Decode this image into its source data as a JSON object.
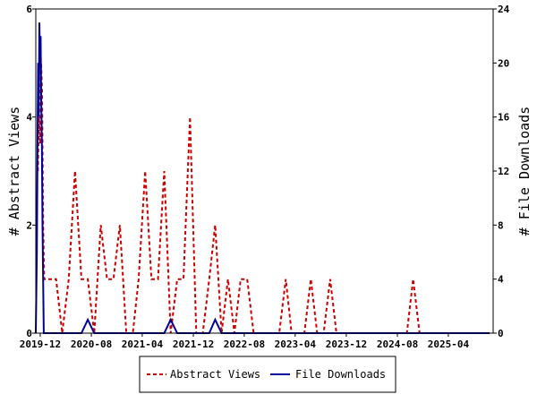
{
  "chart_data": {
    "type": "line",
    "title": "",
    "xlabel": "",
    "ylabel_left": "# Abstract Views",
    "ylabel_right": "# File Downloads",
    "x_tick_labels": [
      "2019-12",
      "2020-08",
      "2021-04",
      "2021-12",
      "2022-08",
      "2023-04",
      "2023-12",
      "2024-08",
      "2025-04"
    ],
    "xlim": [
      "2019-11-10",
      "2025-11-01"
    ],
    "y_left_lim": [
      0,
      6
    ],
    "y_left_ticks": [
      0,
      2,
      4,
      6
    ],
    "y_right_lim": [
      0,
      24
    ],
    "y_right_ticks": [
      0,
      4,
      8,
      12,
      16,
      20,
      24
    ],
    "grid": false,
    "legend_position": "bottom",
    "series": [
      {
        "name": "Abstract Views",
        "axis": "left",
        "color": "#cc0000",
        "style": "dashed",
        "points": [
          [
            "2019-11-20",
            3
          ],
          [
            "2019-11-25",
            4
          ],
          [
            "2019-12-01",
            3.5
          ],
          [
            "2019-12-05",
            5
          ],
          [
            "2019-12-10",
            4.5
          ],
          [
            "2019-12-15",
            2
          ],
          [
            "2019-12-20",
            1
          ],
          [
            "2020-01-15",
            1
          ],
          [
            "2020-02-15",
            1
          ],
          [
            "2020-03-15",
            0
          ],
          [
            "2020-04-15",
            1
          ],
          [
            "2020-05-15",
            3
          ],
          [
            "2020-06-15",
            1
          ],
          [
            "2020-07-15",
            1
          ],
          [
            "2020-08-15",
            0
          ],
          [
            "2020-09-15",
            2
          ],
          [
            "2020-10-15",
            1
          ],
          [
            "2020-11-15",
            1
          ],
          [
            "2020-12-15",
            2
          ],
          [
            "2021-01-15",
            0
          ],
          [
            "2021-02-15",
            0
          ],
          [
            "2021-03-15",
            1
          ],
          [
            "2021-04-15",
            3
          ],
          [
            "2021-05-15",
            1
          ],
          [
            "2021-06-15",
            1
          ],
          [
            "2021-07-15",
            3
          ],
          [
            "2021-08-15",
            0
          ],
          [
            "2021-09-15",
            1
          ],
          [
            "2021-10-15",
            1
          ],
          [
            "2021-11-15",
            4
          ],
          [
            "2021-12-15",
            0
          ],
          [
            "2022-01-15",
            0
          ],
          [
            "2022-02-15",
            1
          ],
          [
            "2022-03-15",
            2
          ],
          [
            "2022-04-15",
            0
          ],
          [
            "2022-05-15",
            1
          ],
          [
            "2022-06-15",
            0
          ],
          [
            "2022-07-15",
            1
          ],
          [
            "2022-08-15",
            1
          ],
          [
            "2022-09-15",
            0
          ],
          [
            "2022-10-15",
            0
          ],
          [
            "2022-11-15",
            0
          ],
          [
            "2022-12-15",
            0
          ],
          [
            "2023-01-15",
            0
          ],
          [
            "2023-02-15",
            1
          ],
          [
            "2023-03-15",
            0
          ],
          [
            "2023-04-15",
            0
          ],
          [
            "2023-05-15",
            0
          ],
          [
            "2023-06-15",
            1
          ],
          [
            "2023-07-15",
            0
          ],
          [
            "2023-08-15",
            0
          ],
          [
            "2023-09-15",
            1
          ],
          [
            "2023-10-15",
            0
          ],
          [
            "2023-11-15",
            0
          ],
          [
            "2023-12-15",
            0
          ],
          [
            "2024-01-15",
            0
          ],
          [
            "2024-02-15",
            0
          ],
          [
            "2024-03-15",
            0
          ],
          [
            "2024-04-15",
            0
          ],
          [
            "2024-05-15",
            0
          ],
          [
            "2024-06-15",
            0
          ],
          [
            "2024-07-15",
            0
          ],
          [
            "2024-08-15",
            0
          ],
          [
            "2024-09-15",
            0
          ],
          [
            "2024-10-15",
            1
          ],
          [
            "2024-11-15",
            0
          ],
          [
            "2024-12-15",
            0
          ],
          [
            "2025-01-15",
            0
          ],
          [
            "2025-02-15",
            0
          ],
          [
            "2025-03-15",
            0
          ],
          [
            "2025-04-15",
            0
          ],
          [
            "2025-05-15",
            0
          ],
          [
            "2025-06-15",
            0
          ],
          [
            "2025-07-15",
            0
          ],
          [
            "2025-08-15",
            0
          ],
          [
            "2025-09-15",
            0
          ],
          [
            "2025-10-15",
            0
          ]
        ]
      },
      {
        "name": "File Downloads",
        "axis": "right",
        "color": "#000099",
        "style": "solid",
        "points": [
          [
            "2019-11-10",
            0
          ],
          [
            "2019-11-15",
            6
          ],
          [
            "2019-11-18",
            14
          ],
          [
            "2019-11-21",
            20
          ],
          [
            "2019-11-24",
            16
          ],
          [
            "2019-11-27",
            23
          ],
          [
            "2019-11-30",
            20
          ],
          [
            "2019-12-03",
            22
          ],
          [
            "2019-12-06",
            17
          ],
          [
            "2019-12-09",
            14
          ],
          [
            "2019-12-12",
            8
          ],
          [
            "2019-12-15",
            4
          ],
          [
            "2019-12-18",
            0
          ],
          [
            "2020-06-15",
            0
          ],
          [
            "2020-07-15",
            1
          ],
          [
            "2020-08-15",
            0
          ],
          [
            "2021-07-15",
            0
          ],
          [
            "2021-08-15",
            1
          ],
          [
            "2021-09-15",
            0
          ],
          [
            "2022-02-15",
            0
          ],
          [
            "2022-03-15",
            1
          ],
          [
            "2022-04-15",
            0
          ],
          [
            "2025-10-15",
            0
          ]
        ]
      }
    ]
  }
}
